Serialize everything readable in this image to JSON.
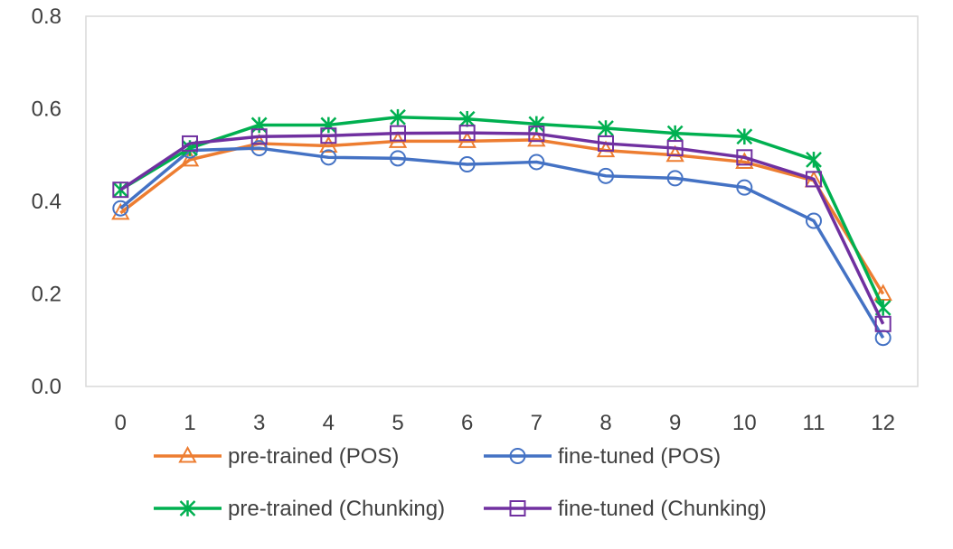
{
  "chart_data": {
    "type": "line",
    "categories": [
      "0",
      "1",
      "3",
      "4",
      "5",
      "6",
      "7",
      "8",
      "9",
      "10",
      "11",
      "12"
    ],
    "ylim": [
      0,
      0.8
    ],
    "yticks": [
      "0.0",
      "0.2",
      "0.4",
      "0.6",
      "0.8"
    ],
    "grid": false,
    "legend_position": "bottom",
    "series": [
      {
        "name": "pre-trained (POS)",
        "marker": "triangle",
        "color": "#ED7D31",
        "values": [
          0.375,
          0.49,
          0.525,
          0.52,
          0.53,
          0.53,
          0.533,
          0.51,
          0.5,
          0.485,
          0.445,
          0.2
        ]
      },
      {
        "name": "fine-tuned (POS)",
        "marker": "circle",
        "color": "#4472C4",
        "values": [
          0.385,
          0.51,
          0.515,
          0.495,
          0.493,
          0.48,
          0.485,
          0.455,
          0.45,
          0.43,
          0.358,
          0.105
        ]
      },
      {
        "name": "pre-trained (Chunking)",
        "marker": "asterisk",
        "color": "#00B050",
        "values": [
          0.425,
          0.515,
          0.565,
          0.565,
          0.582,
          0.578,
          0.567,
          0.558,
          0.547,
          0.54,
          0.49,
          0.17
        ]
      },
      {
        "name": "fine-tuned (Chunking)",
        "marker": "square",
        "color": "#7030A0",
        "values": [
          0.425,
          0.525,
          0.54,
          0.542,
          0.547,
          0.548,
          0.546,
          0.525,
          0.515,
          0.495,
          0.448,
          0.135
        ]
      }
    ]
  }
}
